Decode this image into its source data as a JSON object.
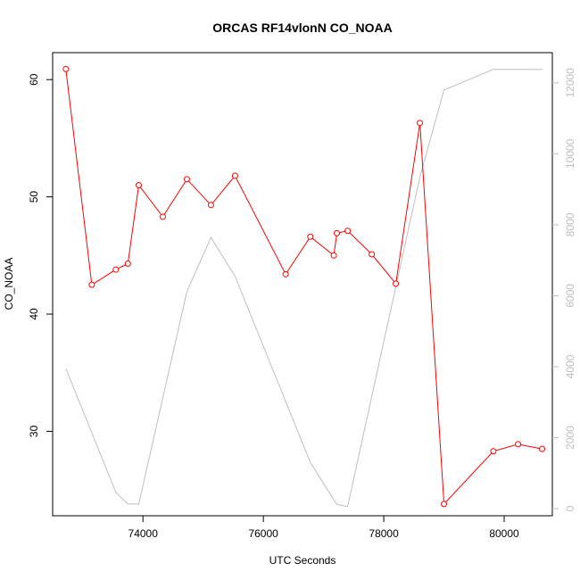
{
  "chart_data": {
    "type": "line",
    "title": "ORCAS RF14vlonN CO_NOAA",
    "xlabel": "UTC Seconds",
    "ylabel": "CO_NOAA",
    "xlim": [
      72500,
      80800
    ],
    "ylim": [
      22.8,
      62.3
    ],
    "ylim_right": [
      -200,
      12850
    ],
    "x_ticks": [
      74000,
      76000,
      78000,
      80000
    ],
    "y_ticks": [
      30,
      40,
      50,
      60
    ],
    "y_ticks_right": [
      0,
      2000,
      4000,
      6000,
      8000,
      10000,
      12000
    ],
    "grid": false,
    "legend": "none",
    "series": [
      {
        "axis": "left",
        "style": "line-points",
        "color": "#ff0000",
        "x": [
          72720,
          73150,
          73550,
          73750,
          73930,
          74330,
          74730,
          75130,
          75530,
          76370,
          76780,
          77170,
          77220,
          77400,
          77800,
          78200,
          78600,
          79000,
          79820,
          80230,
          80630
        ],
        "y": [
          60.9,
          42.5,
          43.8,
          44.3,
          51.0,
          48.3,
          51.5,
          49.3,
          51.8,
          43.4,
          46.6,
          45.0,
          46.9,
          47.1,
          45.1,
          42.6,
          56.3,
          23.8,
          28.3,
          28.9,
          28.5
        ]
      },
      {
        "axis": "right",
        "style": "line",
        "color": "#bebebe",
        "x": [
          72720,
          73550,
          73750,
          73930,
          74730,
          75130,
          75530,
          76780,
          77220,
          77400,
          78600,
          79000,
          79820,
          80230,
          80630
        ],
        "y": [
          3950,
          460,
          130,
          130,
          6120,
          7640,
          6550,
          1300,
          120,
          60,
          9350,
          11800,
          12380,
          12380,
          12380
        ]
      }
    ]
  }
}
